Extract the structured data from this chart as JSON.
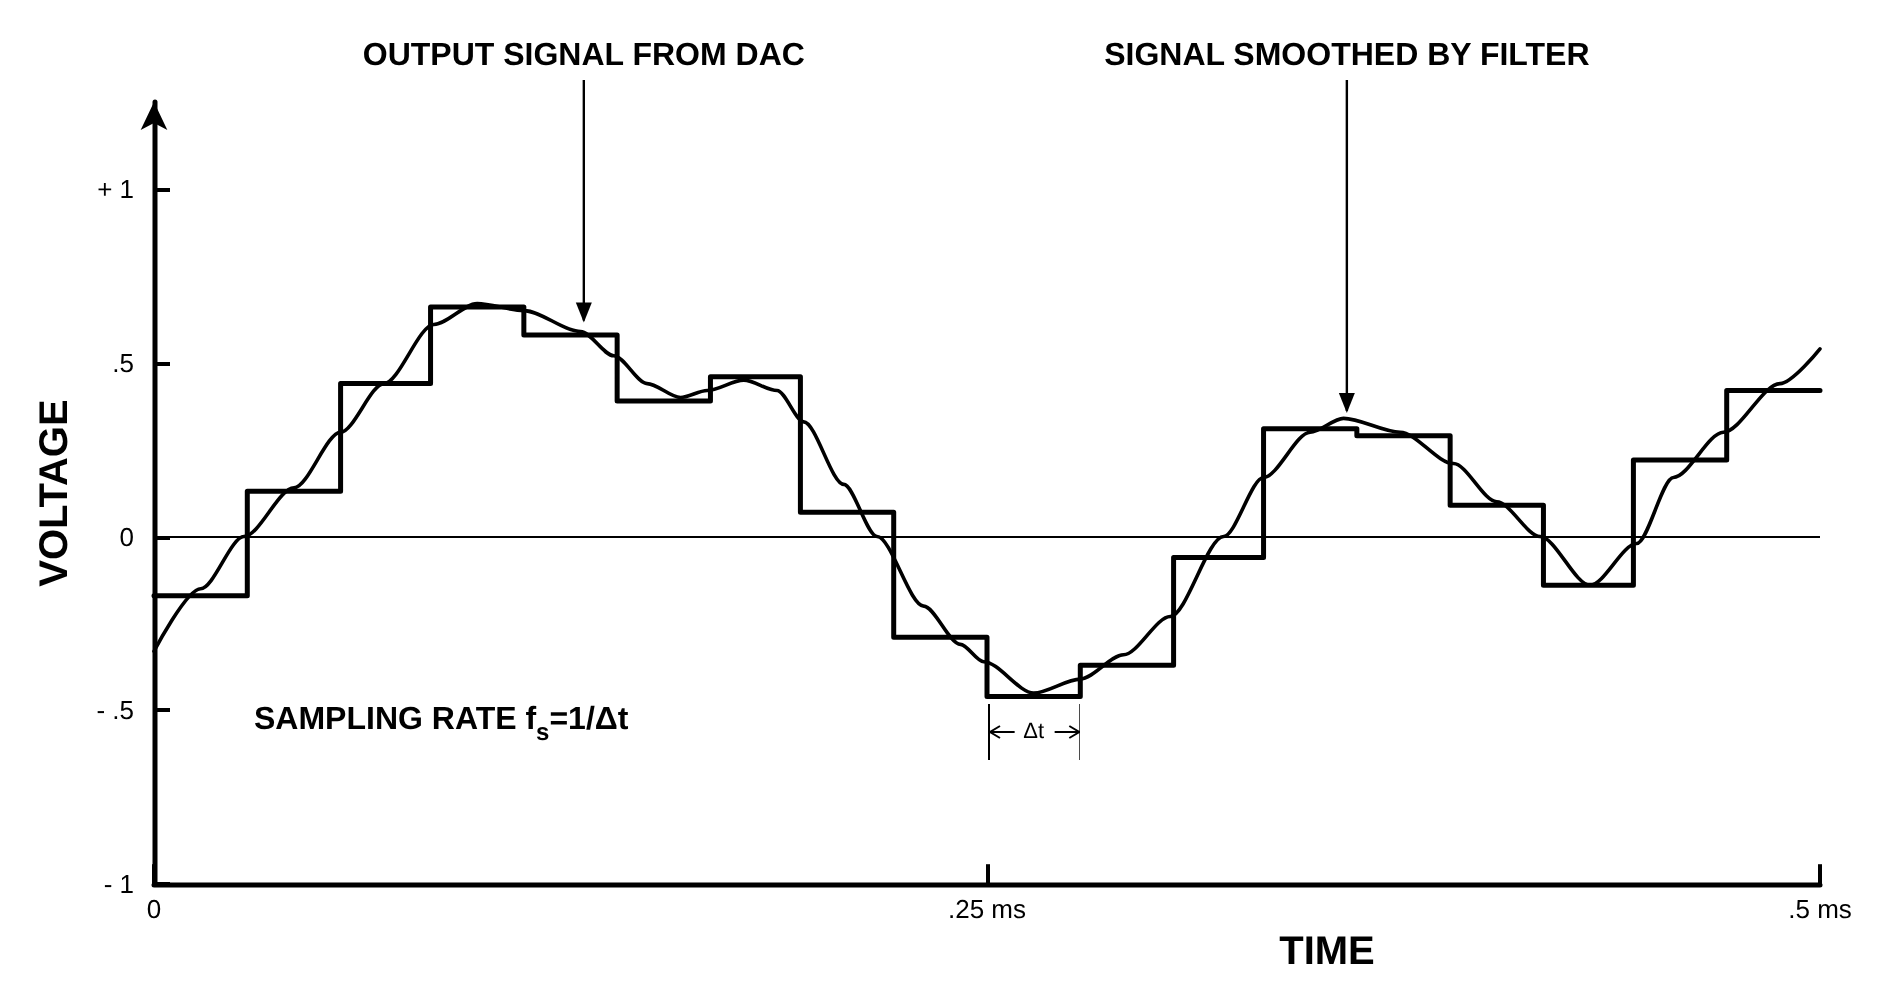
{
  "chart_data": {
    "type": "line",
    "xlabel": "TIME",
    "ylabel": "VOLTAGE",
    "xlim": [
      0,
      0.5
    ],
    "ylim": [
      -1,
      1.25
    ],
    "xticks": [
      0,
      {
        "value": 0.25,
        "label": ".25 ms"
      },
      {
        "value": 0.5,
        "label": ".5 ms"
      }
    ],
    "yticks": [
      {
        "value": -1,
        "label": "- 1"
      },
      {
        "value": -0.5,
        "label": "- .5"
      },
      0,
      {
        "value": 0.5,
        "label": ".5"
      },
      {
        "value": 1,
        "label": "+ 1"
      }
    ],
    "marker": "none",
    "line_style": "solid",
    "ref_lines": [
      {
        "axis": "y",
        "value": 0,
        "color": "#000000"
      }
    ],
    "series": [
      {
        "type": "step",
        "color": "#000000",
        "x": [
          0,
          0.028,
          0.056,
          0.083,
          0.111,
          0.139,
          0.167,
          0.194,
          0.222,
          0.25,
          0.278,
          0.306,
          0.333,
          0.361,
          0.389,
          0.417,
          0.444,
          0.472,
          0.5
        ],
        "values": [
          -0.17,
          0.13,
          0.44,
          0.66,
          0.58,
          0.39,
          0.46,
          0.07,
          -0.29,
          -0.46,
          -0.37,
          -0.06,
          0.31,
          0.29,
          0.09,
          -0.14,
          0.22,
          0.42,
          0.42
        ]
      },
      {
        "color": "#000000",
        "x": [
          0,
          0.014,
          0.027,
          0.042,
          0.056,
          0.069,
          0.084,
          0.097,
          0.111,
          0.128,
          0.138,
          0.148,
          0.158,
          0.166,
          0.177,
          0.187,
          0.195,
          0.207,
          0.217,
          0.231,
          0.242,
          0.249,
          0.264,
          0.278,
          0.291,
          0.305,
          0.321,
          0.333,
          0.347,
          0.357,
          0.374,
          0.39,
          0.403,
          0.416,
          0.431,
          0.445,
          0.456,
          0.471,
          0.488,
          0.5
        ],
        "values": [
          -0.33,
          -0.15,
          0,
          0.14,
          0.3,
          0.44,
          0.61,
          0.67,
          0.65,
          0.59,
          0.52,
          0.44,
          0.4,
          0.42,
          0.45,
          0.42,
          0.33,
          0.15,
          0,
          -0.2,
          -0.31,
          -0.36,
          -0.45,
          -0.41,
          -0.34,
          -0.23,
          0,
          0.17,
          0.3,
          0.34,
          0.3,
          0.21,
          0.1,
          0,
          -0.14,
          -0.02,
          0.17,
          0.3,
          0.44,
          0.54
        ]
      }
    ],
    "annotations": [
      {
        "text": "OUTPUT SIGNAL FROM DAC",
        "x": 0.129,
        "y": 0.61
      },
      {
        "text": "SIGNAL SMOOTHED BY FILTER",
        "x": 0.358,
        "y": 0.35
      },
      "Δt",
      "SAMPLING RATE f$_{s}$=1/Δt"
    ]
  }
}
